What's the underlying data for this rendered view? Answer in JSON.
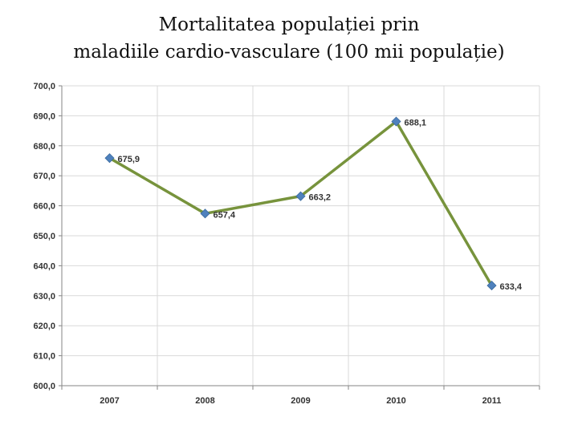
{
  "title_line1": "Mortalitatea populației prin",
  "title_line2": "maladiile cardio-vasculare (100 mii populație)",
  "chart_data": {
    "type": "line",
    "title": "Mortalitatea populației prin maladiile cardio-vasculare (100 mii populație)",
    "categories": [
      "2007",
      "2008",
      "2009",
      "2010",
      "2011"
    ],
    "series": [
      {
        "values": [
          675.9,
          657.4,
          663.2,
          688.1,
          633.4
        ],
        "labels": [
          "675,9",
          "657,4",
          "663,2",
          "688,1",
          "633,4"
        ]
      }
    ],
    "ylim": [
      600,
      700
    ],
    "yticks": [
      "600,0",
      "610,0",
      "620,0",
      "630,0",
      "640,0",
      "650,0",
      "660,0",
      "670,0",
      "680,0",
      "690,0",
      "700,0"
    ],
    "grid": true,
    "legend": "none",
    "colors": {
      "line": "#77933C",
      "marker": "#4F81BD",
      "grid": "#D9D9D9",
      "axis": "#868686"
    }
  }
}
